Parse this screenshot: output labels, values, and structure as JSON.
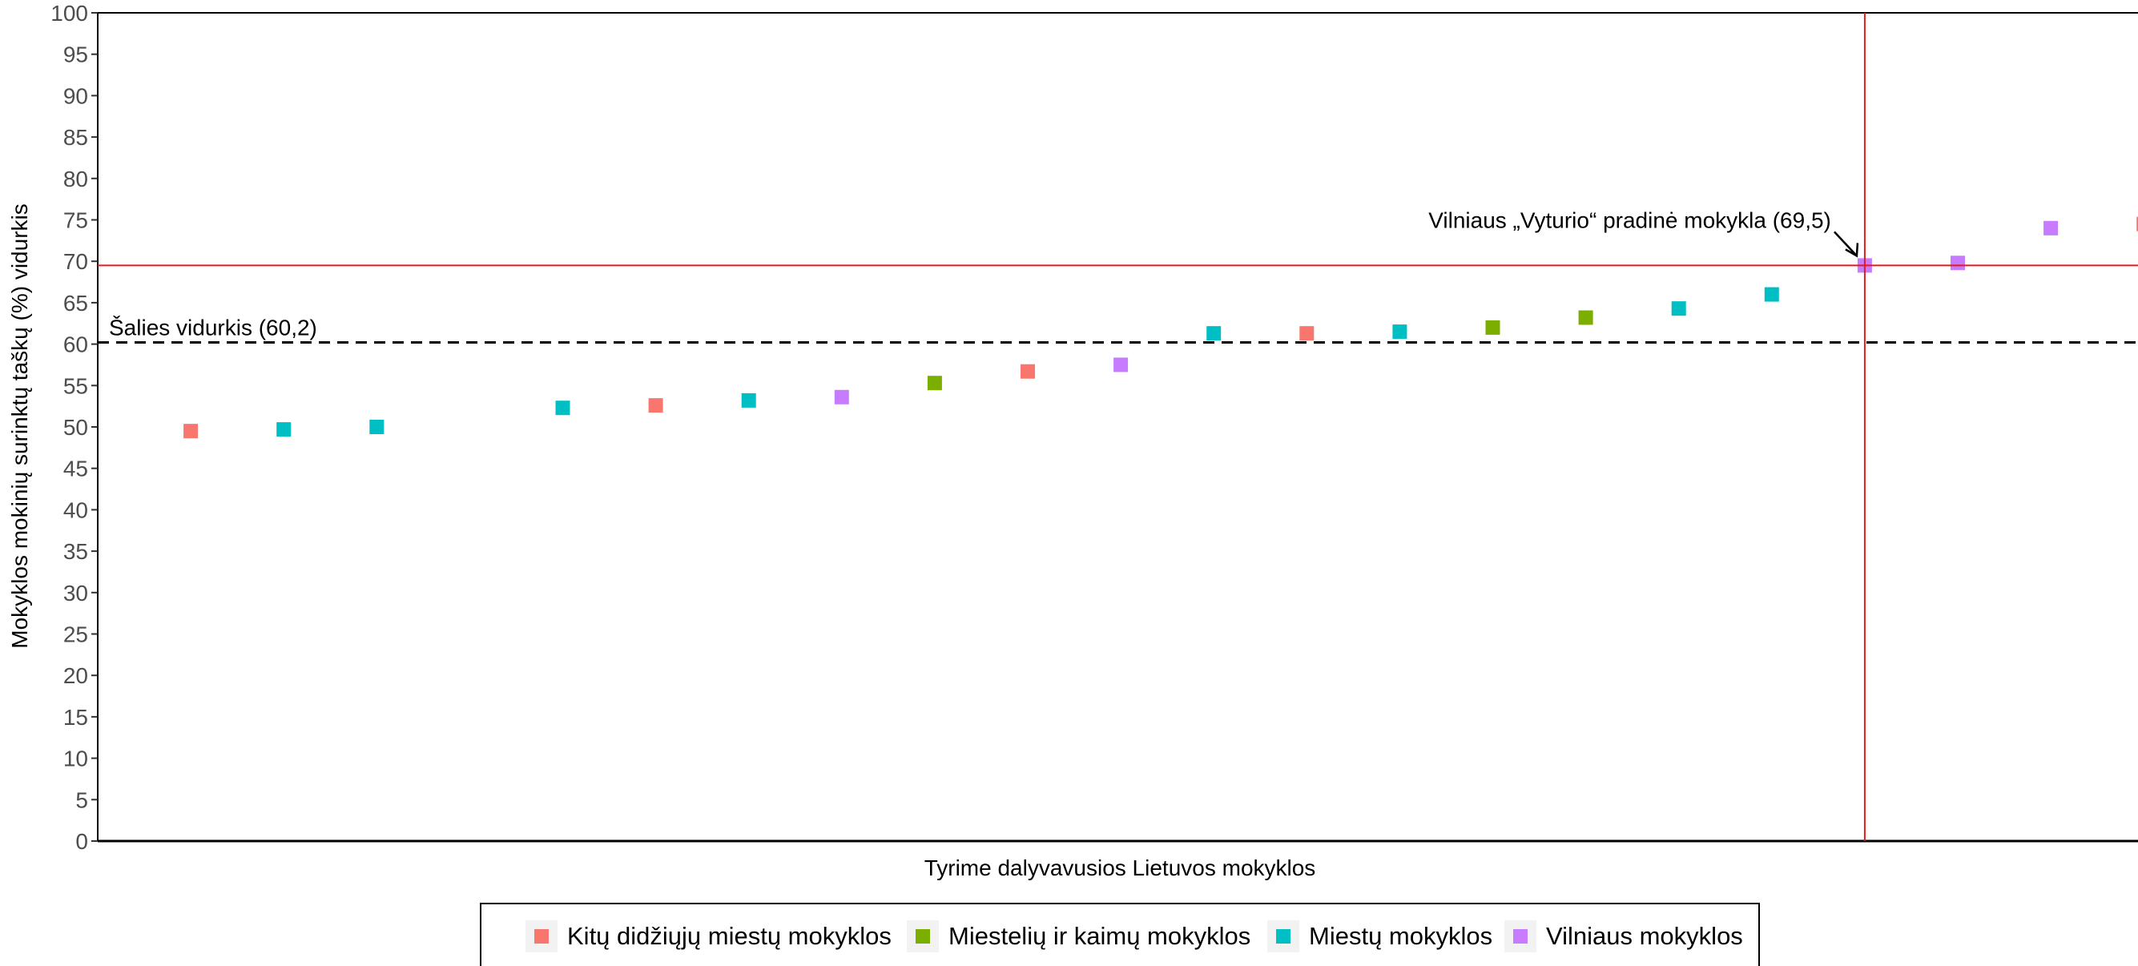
{
  "chart_data": {
    "type": "scatter",
    "xlabel": "Tyrime dalyvavusios Lietuvos mokyklos",
    "ylabel": "Mokyklos mokinių surinktų taškų (%) vidurkis",
    "ylim": [
      0,
      100
    ],
    "y_ticks": [
      "0",
      "5",
      "10",
      "15",
      "20",
      "25",
      "30",
      "35",
      "40",
      "45",
      "50",
      "55",
      "60",
      "65",
      "70",
      "75",
      "80",
      "85",
      "90",
      "95",
      "100"
    ],
    "x_range": [
      0,
      22
    ],
    "grid": false,
    "legend_position": "bottom",
    "series": [
      {
        "name": "Kitų didžiųjų miestų mokyklos",
        "color": "#F8766D",
        "x": [
          1,
          6,
          10,
          13,
          22
        ],
        "y": [
          49.5,
          52.6,
          56.7,
          61.3,
          74.5
        ]
      },
      {
        "name": "Miestelių ir kaimų mokyklos",
        "color": "#7CAE00",
        "x": [
          9,
          15,
          16
        ],
        "y": [
          55.3,
          62.0,
          63.2
        ]
      },
      {
        "name": "Miestų mokyklos",
        "color": "#00BFC4",
        "x": [
          2,
          3,
          5,
          7,
          12,
          14,
          17,
          18
        ],
        "y": [
          49.7,
          50.0,
          52.3,
          53.2,
          61.3,
          61.5,
          64.3,
          66.0
        ]
      },
      {
        "name": "Vilniaus mokyklos",
        "color": "#C77CFF",
        "x": [
          8,
          11,
          19,
          20,
          21
        ],
        "y": [
          53.6,
          57.5,
          69.5,
          69.8,
          74.0
        ]
      }
    ],
    "reference_lines": {
      "national_average": {
        "label": "Šalies vidurkis (60,2)",
        "value": 60.2,
        "style": "dashed",
        "color": "#000000"
      },
      "school_y": {
        "value": 69.5,
        "color": "#E41A1C"
      },
      "school_x": {
        "value": 19,
        "color": "#E41A1C"
      }
    },
    "annotation": {
      "text": "Vilniaus „Vyturio“ pradinė mokykla (69,5)",
      "x": 19,
      "y": 69.5
    }
  }
}
